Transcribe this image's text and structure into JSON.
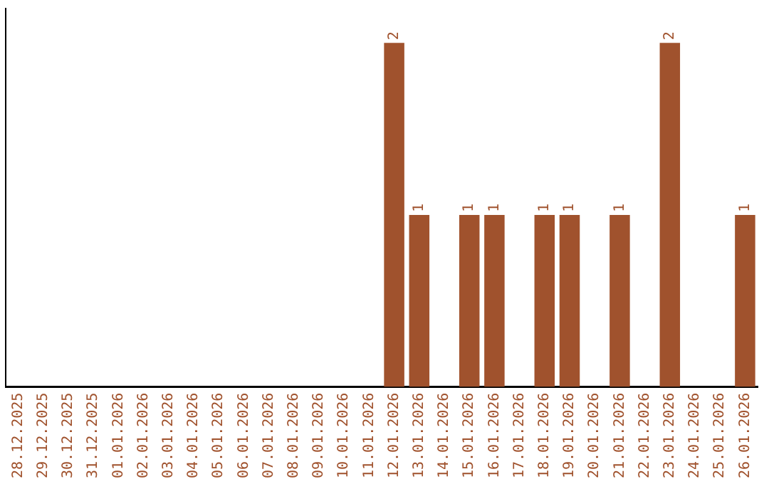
{
  "chart_data": {
    "type": "bar",
    "categories": [
      "28.12.2025",
      "29.12.2025",
      "30.12.2025",
      "31.12.2025",
      "01.01.2026",
      "02.01.2026",
      "03.01.2026",
      "04.01.2026",
      "05.01.2026",
      "06.01.2026",
      "07.01.2026",
      "08.01.2026",
      "09.01.2026",
      "10.01.2026",
      "11.01.2026",
      "12.01.2026",
      "13.01.2026",
      "14.01.2026",
      "15.01.2026",
      "16.01.2026",
      "17.01.2026",
      "18.01.2026",
      "19.01.2026",
      "20.01.2026",
      "21.01.2026",
      "22.01.2026",
      "23.01.2026",
      "24.01.2026",
      "25.01.2026",
      "26.01.2026"
    ],
    "values": [
      null,
      null,
      null,
      null,
      null,
      null,
      null,
      null,
      null,
      null,
      null,
      null,
      null,
      null,
      null,
      2,
      1,
      null,
      1,
      1,
      null,
      1,
      1,
      null,
      1,
      null,
      2,
      null,
      null,
      1
    ],
    "value_labels": [
      null,
      null,
      null,
      null,
      null,
      null,
      null,
      null,
      null,
      null,
      null,
      null,
      null,
      null,
      null,
      "2",
      "1",
      null,
      "1",
      "1",
      null,
      "1",
      "1",
      null,
      "1",
      null,
      "2",
      null,
      null,
      "1"
    ],
    "color": "#a0522d",
    "ylim": [
      0,
      2.2
    ],
    "tick_labels": "x",
    "grid": false,
    "legend": false
  }
}
